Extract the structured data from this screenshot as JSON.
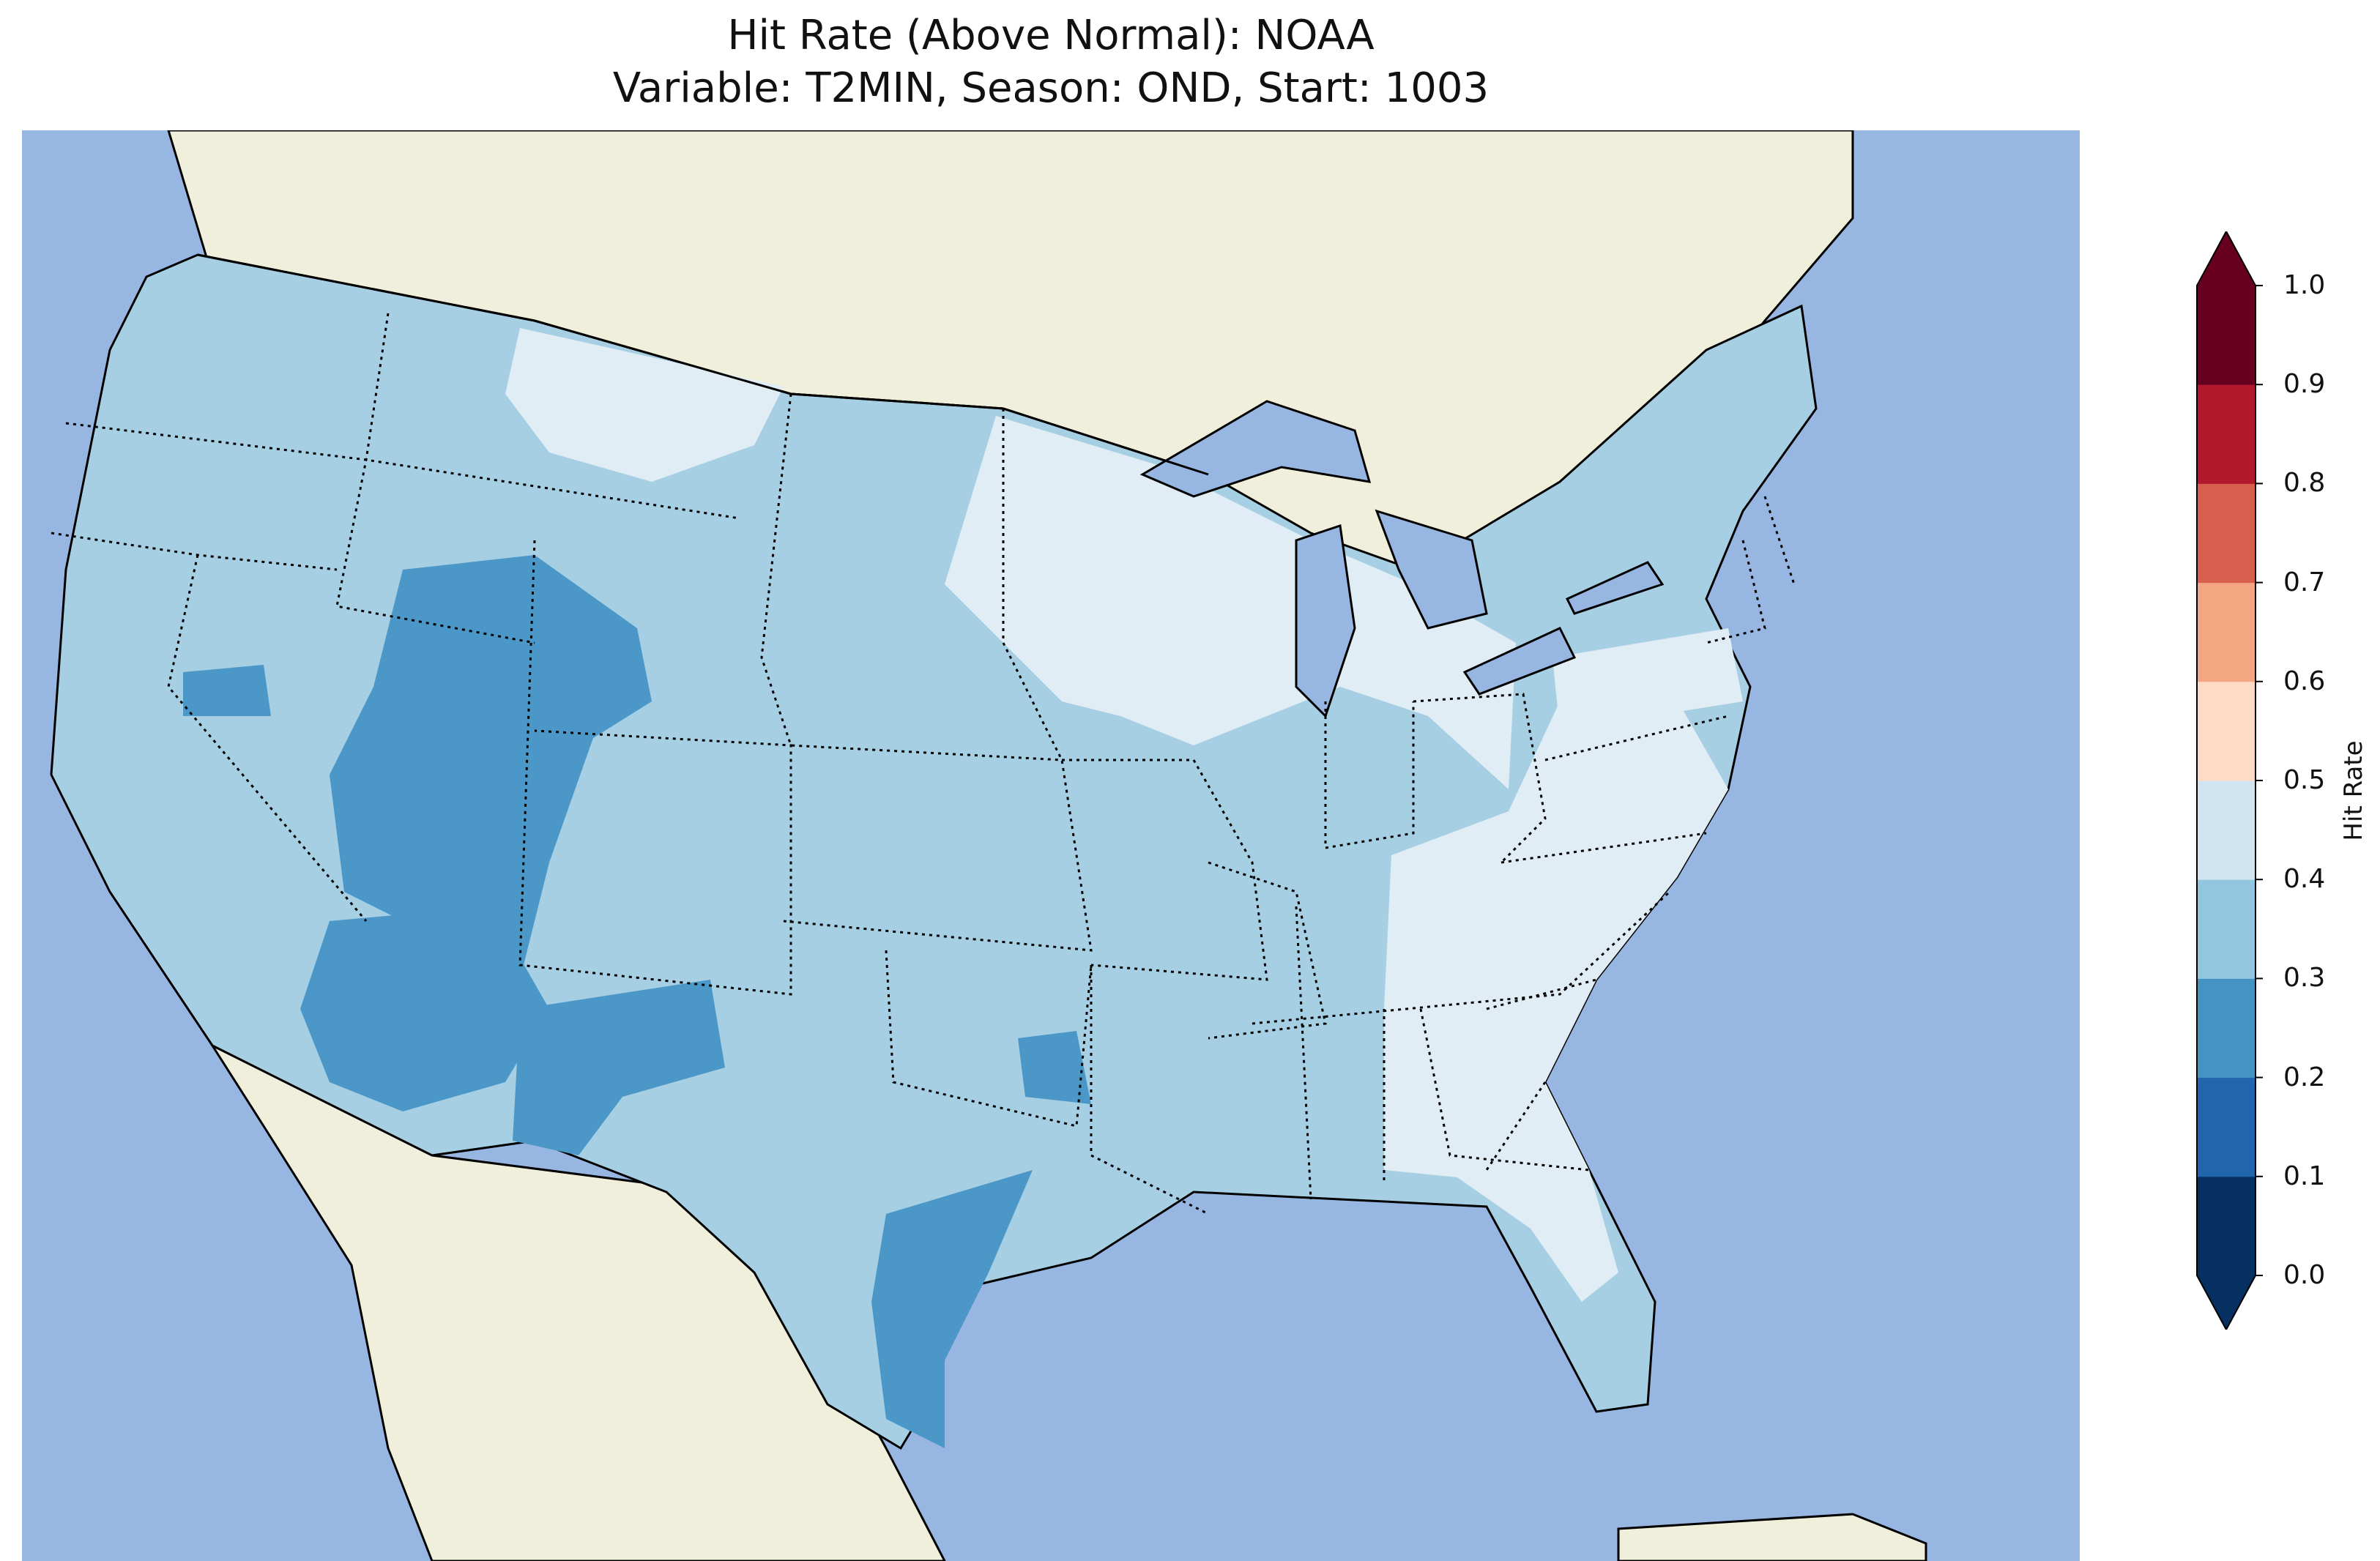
{
  "title": {
    "line1": "Hit Rate (Above Normal): NOAA",
    "line2": "Variable: T2MIN, Season: OND, Start: 1003"
  },
  "colors": {
    "ocean": "#97b6e1",
    "land": "#efefdb",
    "band_0.2_0.3": "#4b98c8",
    "band_0.3_0.4": "#a6cfe4",
    "band_0.4_0.5": "#e1edf4"
  },
  "colorbar": {
    "label": "Hit Rate",
    "ticks": [
      "0.0",
      "0.1",
      "0.2",
      "0.3",
      "0.4",
      "0.5",
      "0.6",
      "0.7",
      "0.8",
      "0.9",
      "1.0"
    ],
    "colors": [
      "#053061",
      "#2166ac",
      "#4393c3",
      "#92c5de",
      "#d1e5f0",
      "#fddbc7",
      "#f4a582",
      "#d6604d",
      "#b2182b",
      "#67001f"
    ],
    "extend": "both",
    "under_color": "#053061",
    "over_color": "#67001f"
  }
}
